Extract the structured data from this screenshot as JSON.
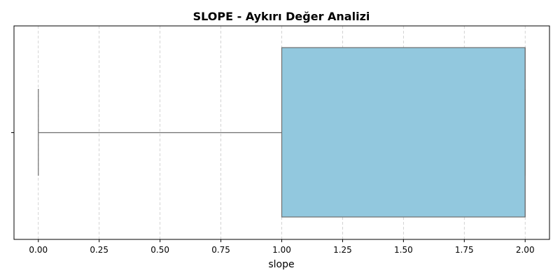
{
  "chart_data": {
    "type": "boxplot",
    "orientation": "horizontal",
    "title": "SLOPE - Aykırı Değer Analizi",
    "xlabel": "slope",
    "ylabel": "",
    "xlim": [
      -0.1,
      2.1
    ],
    "x_ticks": [
      0.0,
      0.25,
      0.5,
      0.75,
      1.0,
      1.25,
      1.5,
      1.75,
      2.0
    ],
    "x_tick_labels": [
      "0.00",
      "0.25",
      "0.50",
      "0.75",
      "1.00",
      "1.25",
      "1.50",
      "1.75",
      "2.00"
    ],
    "grid": {
      "x": true,
      "y": false,
      "style": "dashed"
    },
    "series": [
      {
        "whisker_low": 0.0,
        "q1": 1.0,
        "median": 2.0,
        "q3": 2.0,
        "whisker_high": 2.0
      }
    ],
    "colors": {
      "box_fill": "#92c8de",
      "box_stroke": "#6e6e6e",
      "grid": "#c8c8c8",
      "axis": "#000000"
    }
  }
}
